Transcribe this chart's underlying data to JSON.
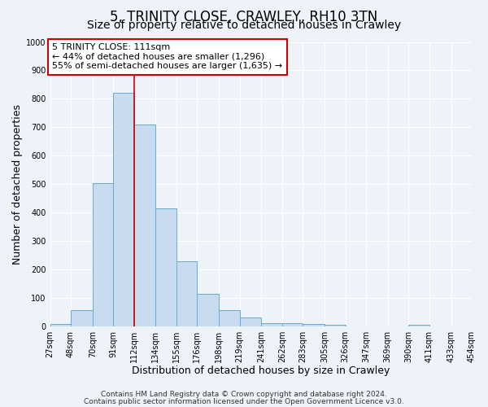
{
  "title": "5, TRINITY CLOSE, CRAWLEY, RH10 3TN",
  "subtitle": "Size of property relative to detached houses in Crawley",
  "xlabel": "Distribution of detached houses by size in Crawley",
  "ylabel": "Number of detached properties",
  "bin_edges": [
    27,
    48,
    70,
    91,
    112,
    134,
    155,
    176,
    198,
    219,
    241,
    262,
    283,
    305,
    326,
    347,
    369,
    390,
    411,
    433,
    454
  ],
  "bin_counts": [
    8,
    57,
    503,
    820,
    710,
    415,
    230,
    115,
    57,
    32,
    12,
    12,
    8,
    5,
    0,
    0,
    0,
    5,
    0,
    0
  ],
  "bar_color": "#c9dbee",
  "bar_edge_color": "#6aaad4",
  "vline_x": 112,
  "vline_color": "#cc0000",
  "annotation_text": "5 TRINITY CLOSE: 111sqm\n← 44% of detached houses are smaller (1,296)\n55% of semi-detached houses are larger (1,635) →",
  "annotation_box_color": "#ffffff",
  "annotation_box_edge_color": "#cc0000",
  "ylim": [
    0,
    1000
  ],
  "yticks": [
    0,
    100,
    200,
    300,
    400,
    500,
    600,
    700,
    800,
    900,
    1000
  ],
  "tick_labels": [
    "27sqm",
    "48sqm",
    "70sqm",
    "91sqm",
    "112sqm",
    "134sqm",
    "155sqm",
    "176sqm",
    "198sqm",
    "219sqm",
    "241sqm",
    "262sqm",
    "283sqm",
    "305sqm",
    "326sqm",
    "347sqm",
    "369sqm",
    "390sqm",
    "411sqm",
    "433sqm",
    "454sqm"
  ],
  "footer_line1": "Contains HM Land Registry data © Crown copyright and database right 2024.",
  "footer_line2": "Contains public sector information licensed under the Open Government Licence v3.0.",
  "bg_color": "#eef2f9",
  "grid_color": "#ffffff",
  "title_fontsize": 12,
  "subtitle_fontsize": 10,
  "axis_label_fontsize": 9,
  "tick_fontsize": 7,
  "annotation_fontsize": 8,
  "footer_fontsize": 6.5
}
